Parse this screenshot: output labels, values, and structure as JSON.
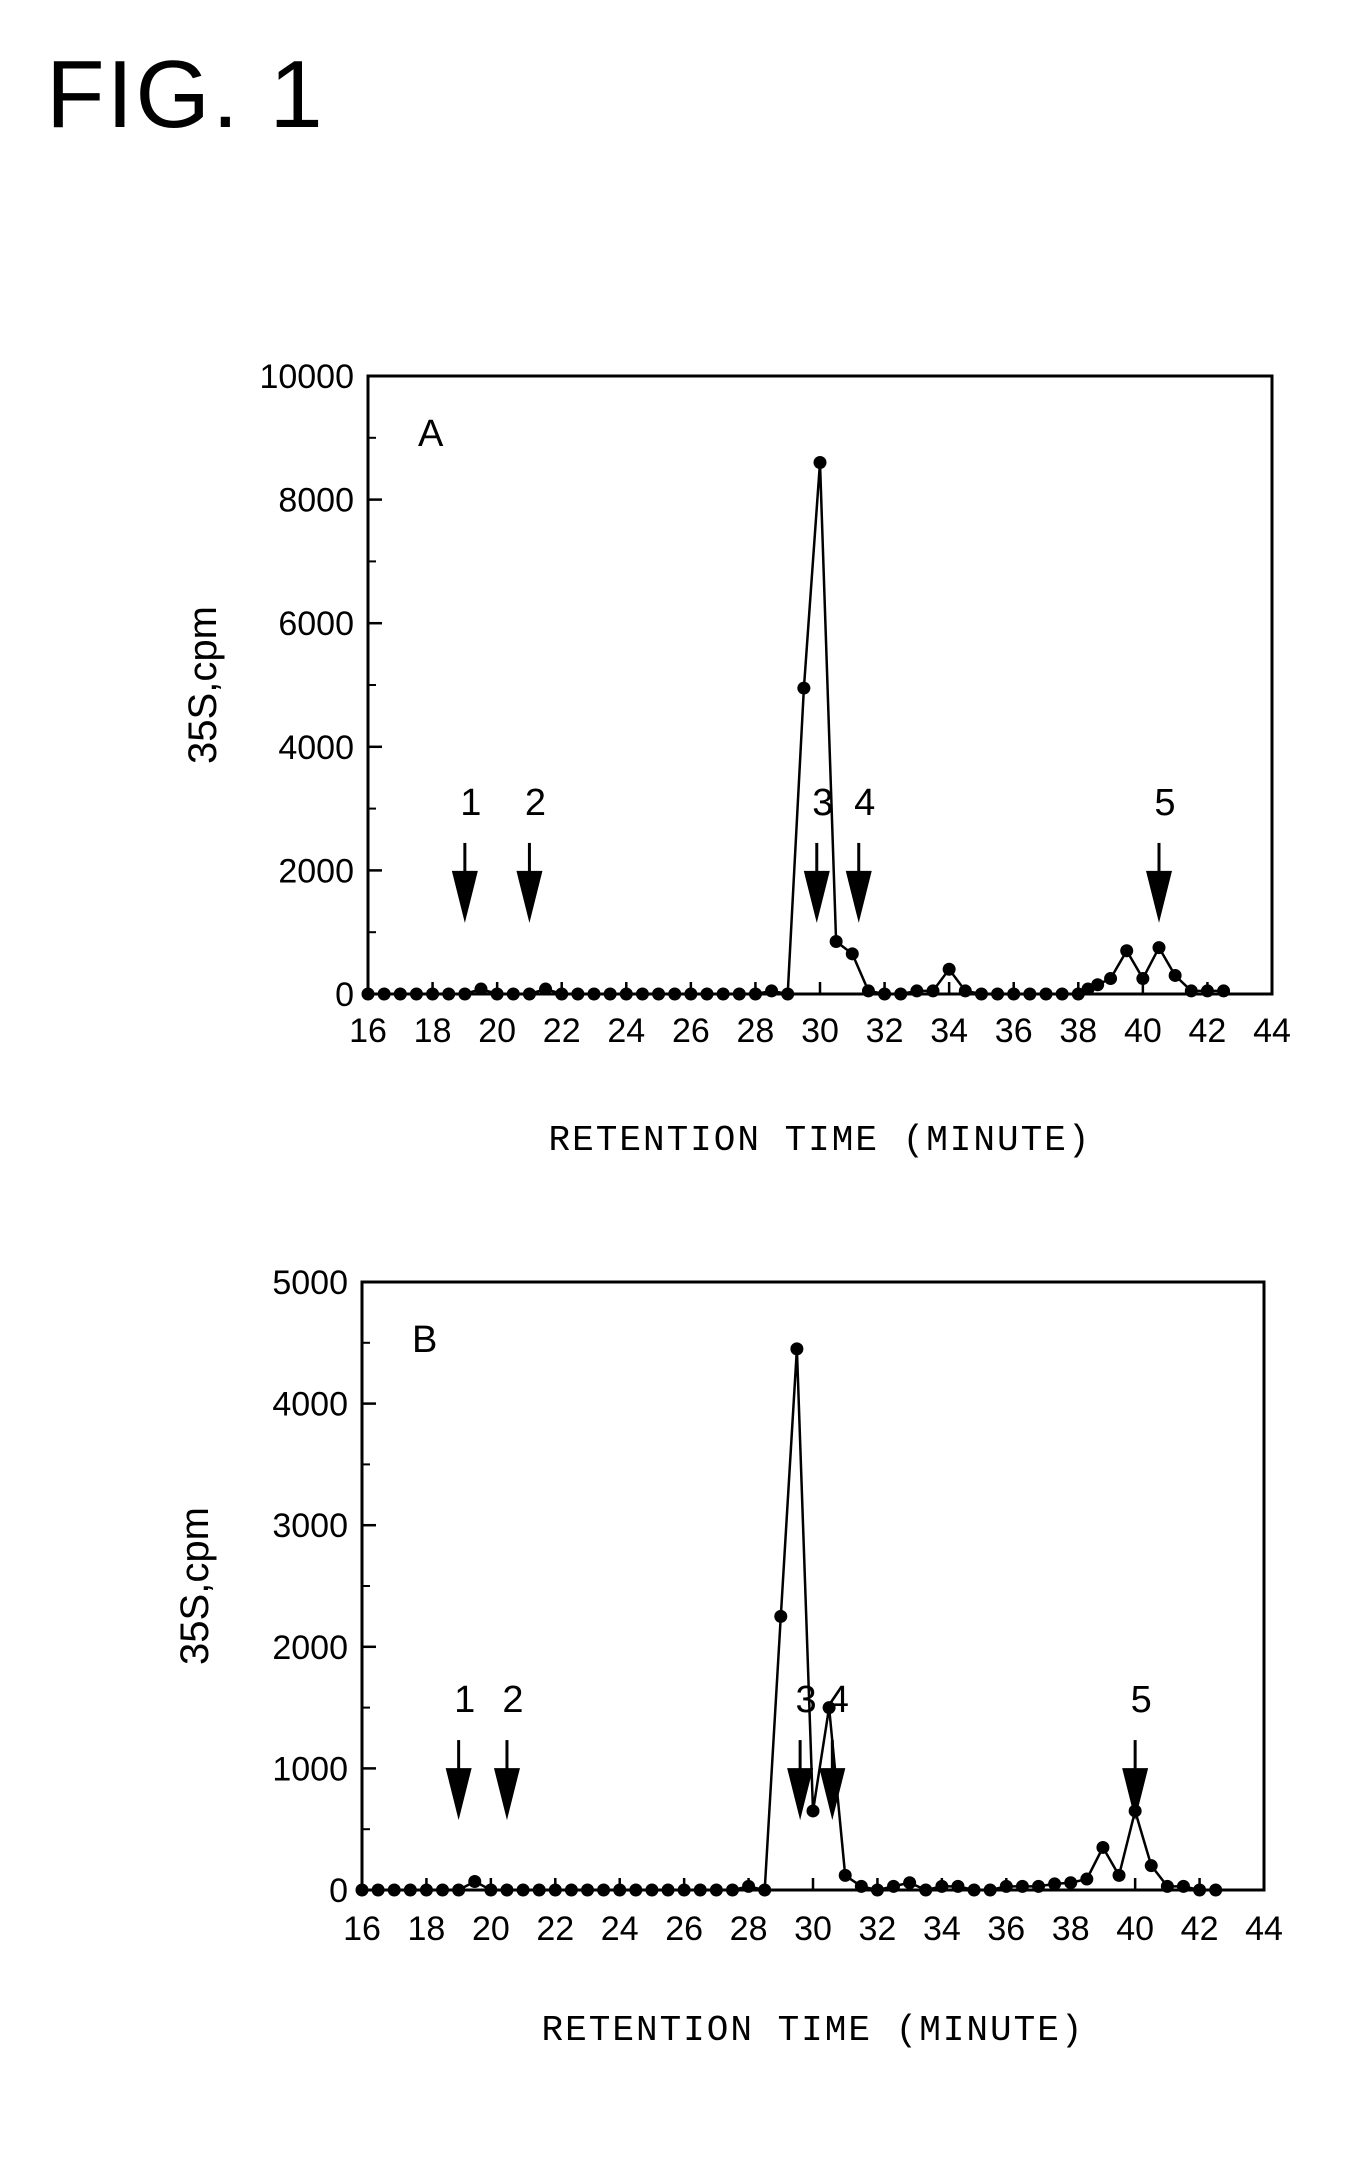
{
  "figure_title": "FIG. 1",
  "chart_data": [
    {
      "type": "line",
      "panel_label": "A",
      "xlabel": "RETENTION TIME (MINUTE)",
      "ylabel": "35S,cpm",
      "xlim": [
        16,
        44
      ],
      "ylim": [
        0,
        10000
      ],
      "x_ticks": [
        16,
        18,
        20,
        22,
        24,
        26,
        28,
        30,
        32,
        34,
        36,
        38,
        40,
        42,
        44
      ],
      "y_ticks": [
        0,
        2000,
        4000,
        6000,
        8000,
        10000
      ],
      "grid": false,
      "series": [
        {
          "x": [
            16,
            16.5,
            17,
            17.5,
            18,
            18.5,
            19,
            19.5,
            20,
            20.5,
            21,
            21.5,
            22,
            22.5,
            23,
            23.5,
            24,
            24.5,
            25,
            25.5,
            26,
            26.5,
            27,
            27.5,
            28,
            28.5,
            29,
            29.5,
            30,
            30.5,
            31,
            31.5,
            32,
            32.5,
            33,
            33.5,
            34,
            34.5,
            35,
            35.5,
            36,
            36.5,
            37,
            37.5,
            38,
            38.3,
            38.6,
            39,
            39.5,
            40,
            40.5,
            41,
            41.5,
            42,
            42.5
          ],
          "y": [
            0,
            0,
            0,
            0,
            0,
            0,
            0,
            80,
            0,
            0,
            0,
            80,
            0,
            0,
            0,
            0,
            0,
            0,
            0,
            0,
            0,
            0,
            0,
            0,
            0,
            50,
            0,
            4950,
            8600,
            850,
            650,
            50,
            0,
            0,
            50,
            50,
            400,
            50,
            0,
            0,
            0,
            0,
            0,
            0,
            0,
            80,
            150,
            250,
            700,
            250,
            750,
            300,
            50,
            50,
            50
          ]
        }
      ],
      "arrows": [
        {
          "label": "1",
          "x": 19
        },
        {
          "label": "2",
          "x": 21
        },
        {
          "label": "3",
          "x": 29.9
        },
        {
          "label": "4",
          "x": 31.2
        },
        {
          "label": "5",
          "x": 40.5
        }
      ]
    },
    {
      "type": "line",
      "panel_label": "B",
      "xlabel": "RETENTION TIME (MINUTE)",
      "ylabel": "35S,cpm",
      "xlim": [
        16,
        44
      ],
      "ylim": [
        0,
        5000
      ],
      "x_ticks": [
        16,
        18,
        20,
        22,
        24,
        26,
        28,
        30,
        32,
        34,
        36,
        38,
        40,
        42,
        44
      ],
      "y_ticks": [
        0,
        1000,
        2000,
        3000,
        4000,
        5000
      ],
      "grid": false,
      "series": [
        {
          "x": [
            16,
            16.5,
            17,
            17.5,
            18,
            18.5,
            19,
            19.5,
            20,
            20.5,
            21,
            21.5,
            22,
            22.5,
            23,
            23.5,
            24,
            24.5,
            25,
            25.5,
            26,
            26.5,
            27,
            27.5,
            28,
            28.5,
            29,
            29.5,
            30,
            30.5,
            31,
            31.5,
            32,
            32.5,
            33,
            33.5,
            34,
            34.5,
            35,
            35.5,
            36,
            36.5,
            37,
            37.5,
            38,
            38.5,
            39,
            39.5,
            40,
            40.5,
            41,
            41.5,
            42,
            42.5
          ],
          "y": [
            0,
            0,
            0,
            0,
            0,
            0,
            0,
            70,
            0,
            0,
            0,
            0,
            0,
            0,
            0,
            0,
            0,
            0,
            0,
            0,
            0,
            0,
            0,
            0,
            30,
            0,
            2250,
            4450,
            650,
            1500,
            120,
            30,
            0,
            30,
            60,
            0,
            30,
            30,
            0,
            0,
            30,
            30,
            30,
            50,
            60,
            90,
            350,
            120,
            650,
            200,
            30,
            30,
            0,
            0
          ]
        }
      ],
      "arrows": [
        {
          "label": "1",
          "x": 19
        },
        {
          "label": "2",
          "x": 20.5
        },
        {
          "label": "3",
          "x": 29.6
        },
        {
          "label": "4",
          "x": 30.6
        },
        {
          "label": "5",
          "x": 40
        }
      ]
    }
  ]
}
